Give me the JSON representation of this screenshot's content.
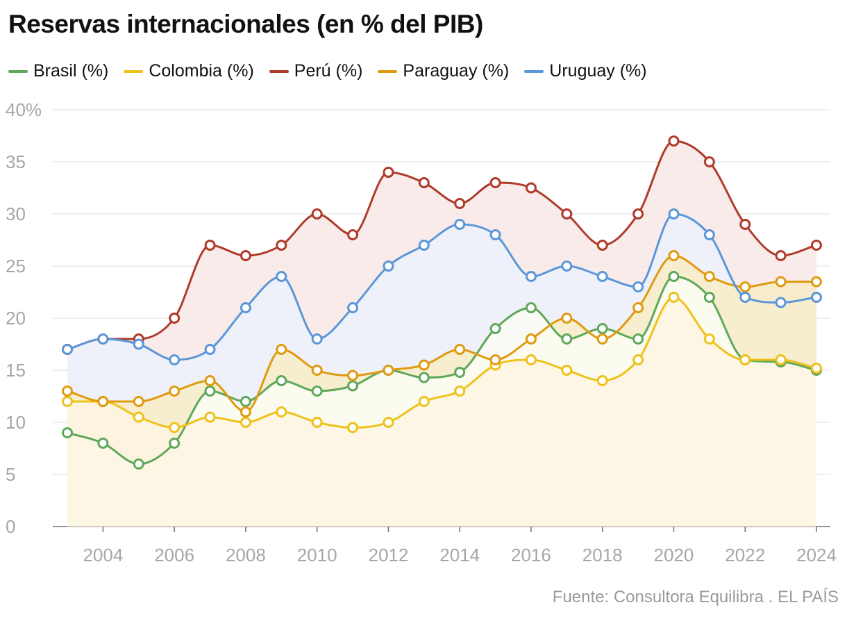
{
  "chart_data": {
    "type": "line",
    "title": "Reservas internacionales (en % del PIB)",
    "xlabel": "",
    "ylabel": "",
    "x": [
      2003,
      2004,
      2005,
      2006,
      2007,
      2008,
      2009,
      2010,
      2011,
      2012,
      2013,
      2014,
      2015,
      2016,
      2017,
      2018,
      2019,
      2020,
      2021,
      2022,
      2023,
      2024
    ],
    "xticks": [
      "2004",
      "2006",
      "2008",
      "2010",
      "2012",
      "2014",
      "2016",
      "2018",
      "2020",
      "2022",
      "2024"
    ],
    "yticks": [
      "0",
      "5",
      "10",
      "15",
      "20",
      "25",
      "30",
      "35",
      "40%"
    ],
    "ylim": [
      0,
      40
    ],
    "grid": true,
    "legend_position": "top-left",
    "series": [
      {
        "name": "Brasil (%)",
        "color": "#5fa85a",
        "fill": "#fbfdf6",
        "values": [
          9,
          8,
          6,
          8,
          13,
          12,
          14,
          13,
          13.5,
          15,
          14.3,
          14.8,
          19,
          21,
          18,
          19,
          18,
          24,
          22,
          16,
          15.8,
          15
        ]
      },
      {
        "name": "Colombia (%)",
        "color": "#eec21a",
        "fill": "#fdf5e2",
        "values": [
          12,
          12,
          10.5,
          9.5,
          10.5,
          10,
          11,
          10,
          9.5,
          10,
          12,
          13,
          15.5,
          16,
          15,
          14,
          16,
          22,
          18,
          16,
          16,
          15.2
        ]
      },
      {
        "name": "Perú (%)",
        "color": "#b03a2a",
        "fill": "#f7e8e5",
        "values": [
          17,
          18,
          18,
          20,
          27,
          26,
          27,
          30,
          28,
          34,
          33,
          31,
          33,
          32.5,
          30,
          27,
          30,
          37,
          35,
          29,
          26,
          27
        ]
      },
      {
        "name": "Paraguay (%)",
        "color": "#e09a10",
        "fill": "#f8ecc8",
        "values": [
          13,
          12,
          12,
          13,
          14,
          11,
          17,
          15,
          14.5,
          15,
          15.5,
          17,
          16,
          18,
          20,
          18,
          21,
          26,
          24,
          23,
          23.5,
          23.5
        ]
      },
      {
        "name": "Uruguay (%)",
        "color": "#5b96d8",
        "fill": "#ecf2fb",
        "values": [
          17,
          18,
          17.5,
          16,
          17,
          21,
          24,
          18,
          21,
          25,
          27,
          29,
          28,
          24,
          25,
          24,
          23,
          30,
          28,
          22,
          21.5,
          22
        ]
      }
    ]
  },
  "footer": {
    "source": "Fuente: Consultora Equilibra . EL PAÍS"
  }
}
